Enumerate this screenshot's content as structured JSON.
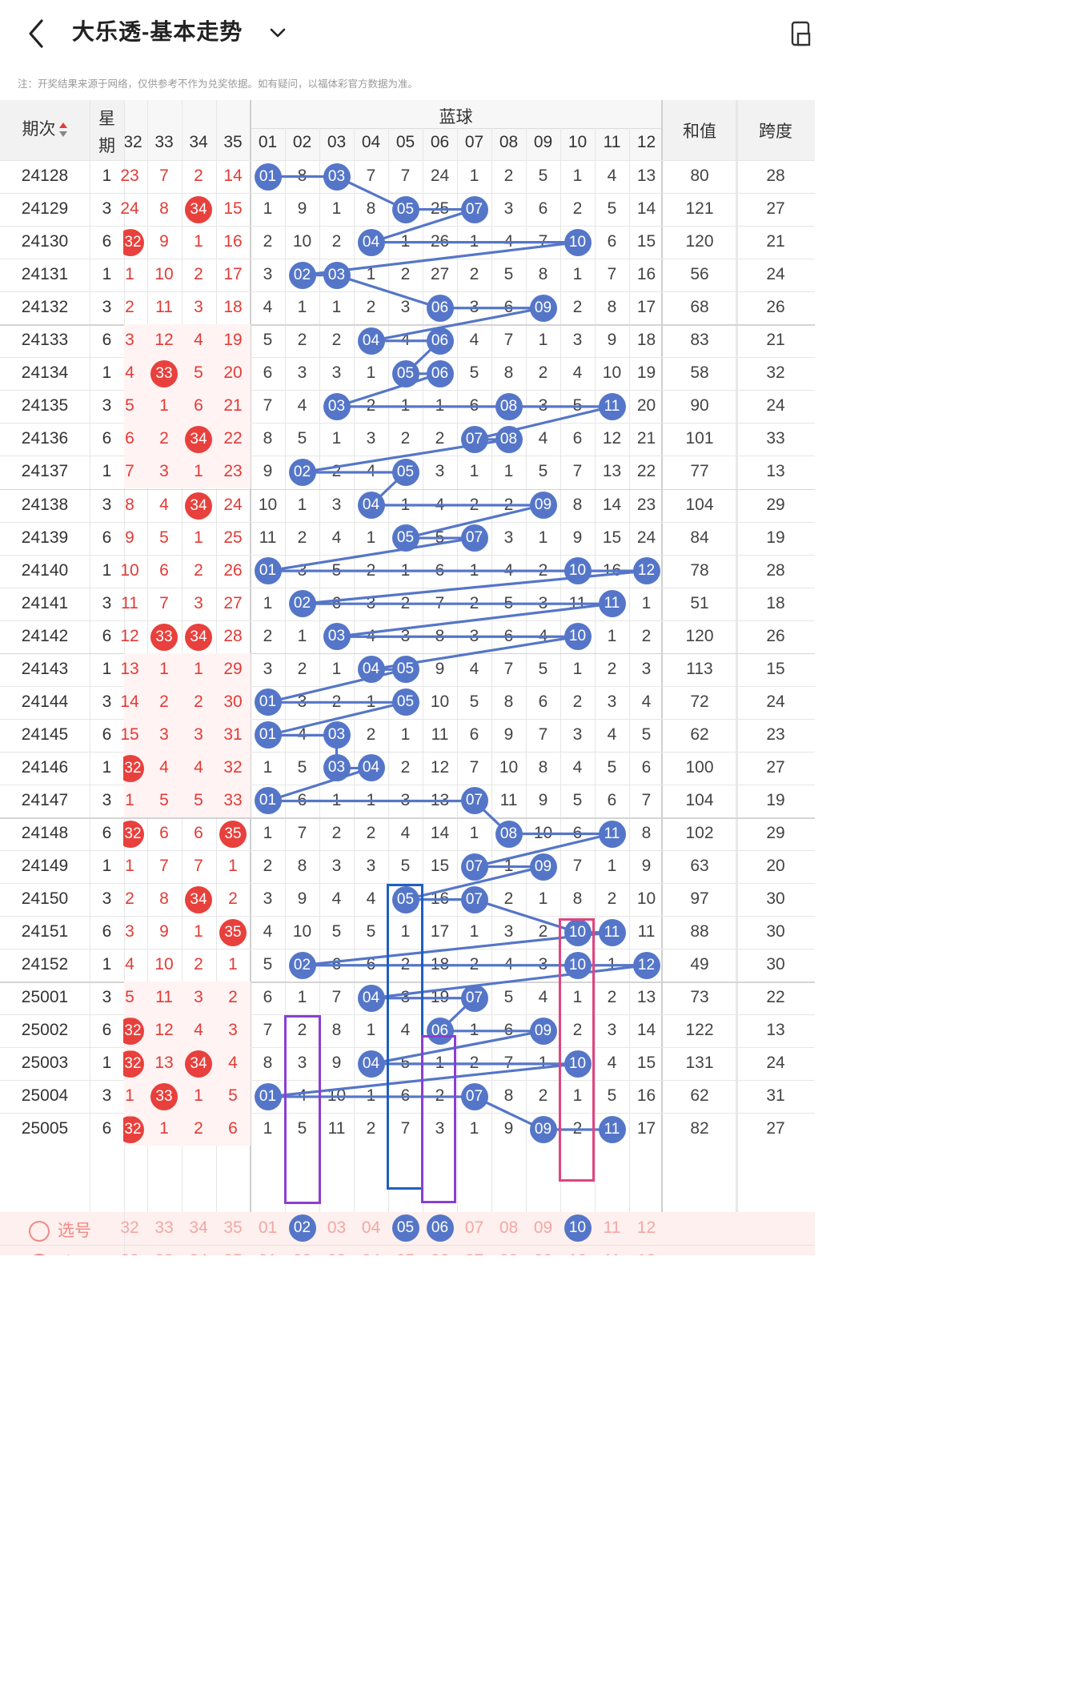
{
  "header": {
    "title": "大乐透-基本走势",
    "back_icon": "chevron-left-icon",
    "dropdown_icon": "chevron-down-icon",
    "tool_icon": "phone-rotate-icon"
  },
  "note": "注：开奖结果来源于网络，仅供参考不作为兑奖依据。如有疑问，以福体彩官方数据为准。",
  "table": {
    "col_period": "期次",
    "col_weekday": "星期",
    "red_cols": [
      "32",
      "33",
      "34",
      "35"
    ],
    "blue_group": "蓝球",
    "blue_cols": [
      "01",
      "02",
      "03",
      "04",
      "05",
      "06",
      "07",
      "08",
      "09",
      "10",
      "11",
      "12"
    ],
    "col_sum": "和值",
    "col_span": "跨度",
    "rows": [
      {
        "period": "24128",
        "wd": "1",
        "red": [
          "23",
          "7",
          "2",
          "14"
        ],
        "blue": [
          "01",
          "8",
          "03",
          "7",
          "7",
          "24",
          "1",
          "2",
          "5",
          "1",
          "4",
          "13"
        ],
        "sum": "80",
        "span": "28"
      },
      {
        "period": "24129",
        "wd": "3",
        "red": [
          "24",
          "8",
          "34",
          "15"
        ],
        "blue": [
          "1",
          "9",
          "1",
          "8",
          "05",
          "25",
          "07",
          "3",
          "6",
          "2",
          "5",
          "14"
        ],
        "sum": "121",
        "span": "27"
      },
      {
        "period": "24130",
        "wd": "6",
        "red": [
          "32",
          "9",
          "1",
          "16"
        ],
        "blue": [
          "2",
          "10",
          "2",
          "04",
          "1",
          "26",
          "1",
          "4",
          "7",
          "10",
          "6",
          "15"
        ],
        "sum": "120",
        "span": "21"
      },
      {
        "period": "24131",
        "wd": "1",
        "red": [
          "1",
          "10",
          "2",
          "17"
        ],
        "blue": [
          "3",
          "02",
          "03",
          "1",
          "2",
          "27",
          "2",
          "5",
          "8",
          "1",
          "7",
          "16"
        ],
        "sum": "56",
        "span": "24"
      },
      {
        "period": "24132",
        "wd": "3",
        "red": [
          "2",
          "11",
          "3",
          "18"
        ],
        "blue": [
          "4",
          "1",
          "1",
          "2",
          "3",
          "06",
          "3",
          "6",
          "09",
          "2",
          "8",
          "17"
        ],
        "sum": "68",
        "span": "26"
      },
      {
        "period": "24133",
        "wd": "6",
        "red": [
          "3",
          "12",
          "4",
          "19"
        ],
        "blue": [
          "5",
          "2",
          "2",
          "04",
          "4",
          "06",
          "4",
          "7",
          "1",
          "3",
          "9",
          "18"
        ],
        "sum": "83",
        "span": "21"
      },
      {
        "period": "24134",
        "wd": "1",
        "red": [
          "4",
          "33",
          "5",
          "20"
        ],
        "blue": [
          "6",
          "3",
          "3",
          "1",
          "05",
          "06",
          "5",
          "8",
          "2",
          "4",
          "10",
          "19"
        ],
        "sum": "58",
        "span": "32"
      },
      {
        "period": "24135",
        "wd": "3",
        "red": [
          "5",
          "1",
          "6",
          "21"
        ],
        "blue": [
          "7",
          "4",
          "03",
          "2",
          "1",
          "1",
          "6",
          "08",
          "3",
          "5",
          "11",
          "20"
        ],
        "sum": "90",
        "span": "24"
      },
      {
        "period": "24136",
        "wd": "6",
        "red": [
          "6",
          "2",
          "34",
          "22"
        ],
        "blue": [
          "8",
          "5",
          "1",
          "3",
          "2",
          "2",
          "07",
          "08",
          "4",
          "6",
          "12",
          "21"
        ],
        "sum": "101",
        "span": "33"
      },
      {
        "period": "24137",
        "wd": "1",
        "red": [
          "7",
          "3",
          "1",
          "23"
        ],
        "blue": [
          "9",
          "02",
          "2",
          "4",
          "05",
          "3",
          "1",
          "1",
          "5",
          "7",
          "13",
          "22"
        ],
        "sum": "77",
        "span": "13"
      },
      {
        "period": "24138",
        "wd": "3",
        "red": [
          "8",
          "4",
          "34",
          "24"
        ],
        "blue": [
          "10",
          "1",
          "3",
          "04",
          "1",
          "4",
          "2",
          "2",
          "09",
          "8",
          "14",
          "23"
        ],
        "sum": "104",
        "span": "29"
      },
      {
        "period": "24139",
        "wd": "6",
        "red": [
          "9",
          "5",
          "1",
          "25"
        ],
        "blue": [
          "11",
          "2",
          "4",
          "1",
          "05",
          "5",
          "07",
          "3",
          "1",
          "9",
          "15",
          "24"
        ],
        "sum": "84",
        "span": "19"
      },
      {
        "period": "24140",
        "wd": "1",
        "red": [
          "10",
          "6",
          "2",
          "26"
        ],
        "blue": [
          "01",
          "3",
          "5",
          "2",
          "1",
          "6",
          "1",
          "4",
          "2",
          "10",
          "16",
          "12"
        ],
        "sum": "78",
        "span": "28"
      },
      {
        "period": "24141",
        "wd": "3",
        "red": [
          "11",
          "7",
          "3",
          "27"
        ],
        "blue": [
          "1",
          "02",
          "6",
          "3",
          "2",
          "7",
          "2",
          "5",
          "3",
          "11",
          "11",
          "1"
        ],
        "sum": "51",
        "span": "18"
      },
      {
        "period": "24142",
        "wd": "6",
        "red": [
          "12",
          "33",
          "34",
          "28"
        ],
        "blue": [
          "2",
          "1",
          "03",
          "4",
          "3",
          "8",
          "3",
          "6",
          "4",
          "10",
          "1",
          "2"
        ],
        "sum": "120",
        "span": "26"
      },
      {
        "period": "24143",
        "wd": "1",
        "red": [
          "13",
          "1",
          "1",
          "29"
        ],
        "blue": [
          "3",
          "2",
          "1",
          "04",
          "05",
          "9",
          "4",
          "7",
          "5",
          "1",
          "2",
          "3"
        ],
        "sum": "113",
        "span": "15"
      },
      {
        "period": "24144",
        "wd": "3",
        "red": [
          "14",
          "2",
          "2",
          "30"
        ],
        "blue": [
          "01",
          "3",
          "2",
          "1",
          "05",
          "10",
          "5",
          "8",
          "6",
          "2",
          "3",
          "4"
        ],
        "sum": "72",
        "span": "24"
      },
      {
        "period": "24145",
        "wd": "6",
        "red": [
          "15",
          "3",
          "3",
          "31"
        ],
        "blue": [
          "01",
          "4",
          "03",
          "2",
          "1",
          "11",
          "6",
          "9",
          "7",
          "3",
          "4",
          "5"
        ],
        "sum": "62",
        "span": "23"
      },
      {
        "period": "24146",
        "wd": "1",
        "red": [
          "32",
          "4",
          "4",
          "32"
        ],
        "blue": [
          "1",
          "5",
          "03",
          "04",
          "2",
          "12",
          "7",
          "10",
          "8",
          "4",
          "5",
          "6"
        ],
        "sum": "100",
        "span": "27"
      },
      {
        "period": "24147",
        "wd": "3",
        "red": [
          "1",
          "5",
          "5",
          "33"
        ],
        "blue": [
          "01",
          "6",
          "1",
          "1",
          "3",
          "13",
          "07",
          "11",
          "9",
          "5",
          "6",
          "7"
        ],
        "sum": "104",
        "span": "19"
      },
      {
        "period": "24148",
        "wd": "6",
        "red": [
          "32",
          "6",
          "6",
          "35"
        ],
        "blue": [
          "1",
          "7",
          "2",
          "2",
          "4",
          "14",
          "1",
          "08",
          "10",
          "6",
          "11",
          "8"
        ],
        "sum": "102",
        "span": "29"
      },
      {
        "period": "24149",
        "wd": "1",
        "red": [
          "1",
          "7",
          "7",
          "1"
        ],
        "blue": [
          "2",
          "8",
          "3",
          "3",
          "5",
          "15",
          "07",
          "1",
          "09",
          "7",
          "1",
          "9"
        ],
        "sum": "63",
        "span": "20"
      },
      {
        "period": "24150",
        "wd": "3",
        "red": [
          "2",
          "8",
          "34",
          "2"
        ],
        "blue": [
          "3",
          "9",
          "4",
          "4",
          "05",
          "16",
          "07",
          "2",
          "1",
          "8",
          "2",
          "10"
        ],
        "sum": "97",
        "span": "30"
      },
      {
        "period": "24151",
        "wd": "6",
        "red": [
          "3",
          "9",
          "1",
          "35"
        ],
        "blue": [
          "4",
          "10",
          "5",
          "5",
          "1",
          "17",
          "1",
          "3",
          "2",
          "10",
          "11",
          "11"
        ],
        "sum": "88",
        "span": "30"
      },
      {
        "period": "24152",
        "wd": "1",
        "red": [
          "4",
          "10",
          "2",
          "1"
        ],
        "blue": [
          "5",
          "02",
          "6",
          "6",
          "2",
          "18",
          "2",
          "4",
          "3",
          "10",
          "1",
          "12"
        ],
        "sum": "49",
        "span": "30"
      },
      {
        "period": "25001",
        "wd": "3",
        "red": [
          "5",
          "11",
          "3",
          "2"
        ],
        "blue": [
          "6",
          "1",
          "7",
          "04",
          "3",
          "19",
          "07",
          "5",
          "4",
          "1",
          "2",
          "13"
        ],
        "sum": "73",
        "span": "22"
      },
      {
        "period": "25002",
        "wd": "6",
        "red": [
          "32",
          "12",
          "4",
          "3"
        ],
        "blue": [
          "7",
          "2",
          "8",
          "1",
          "4",
          "06",
          "1",
          "6",
          "09",
          "2",
          "3",
          "14"
        ],
        "sum": "122",
        "span": "13"
      },
      {
        "period": "25003",
        "wd": "1",
        "red": [
          "32",
          "13",
          "34",
          "4"
        ],
        "blue": [
          "8",
          "3",
          "9",
          "04",
          "5",
          "1",
          "2",
          "7",
          "1",
          "10",
          "4",
          "15"
        ],
        "sum": "131",
        "span": "24"
      },
      {
        "period": "25004",
        "wd": "3",
        "red": [
          "1",
          "33",
          "1",
          "5"
        ],
        "blue": [
          "01",
          "4",
          "10",
          "1",
          "6",
          "2",
          "07",
          "8",
          "2",
          "1",
          "5",
          "16"
        ],
        "sum": "62",
        "span": "31"
      },
      {
        "period": "25005",
        "wd": "6",
        "red": [
          "32",
          "1",
          "2",
          "6"
        ],
        "blue": [
          "1",
          "5",
          "11",
          "2",
          "7",
          "3",
          "1",
          "9",
          "09",
          "2",
          "11",
          "17"
        ],
        "sum": "82",
        "span": "27"
      }
    ],
    "select_label": "选号",
    "footer_dash": "-"
  },
  "colors": {
    "red_ball": "#e8403c",
    "blue_ball": "#5576c8",
    "box_purple": "#8a3fd1",
    "box_blue": "#1f5fbf",
    "box_pink": "#e0457f"
  }
}
